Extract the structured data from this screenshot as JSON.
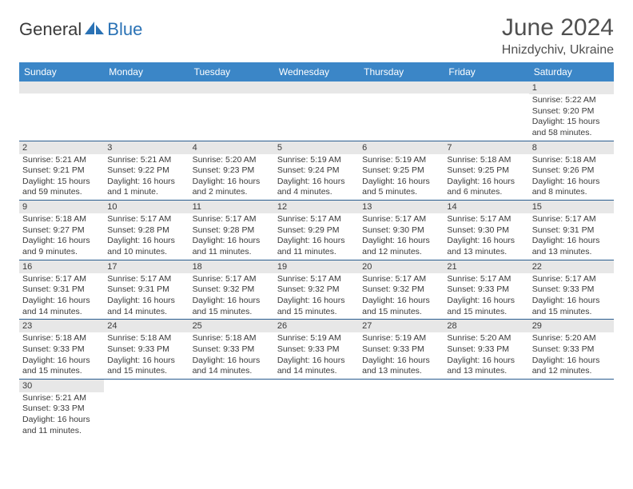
{
  "logo": {
    "part1": "General",
    "part2": "Blue"
  },
  "title": "June 2024",
  "location": "Hnizdychiv, Ukraine",
  "colors": {
    "header_bg": "#3b86c7",
    "header_text": "#ffffff",
    "row_divider": "#2a5d8f",
    "daynum_bg": "#e7e7e7",
    "text": "#3a3a3a",
    "logo_blue": "#2a72b5"
  },
  "weekdays": [
    "Sunday",
    "Monday",
    "Tuesday",
    "Wednesday",
    "Thursday",
    "Friday",
    "Saturday"
  ],
  "weeks": [
    [
      null,
      null,
      null,
      null,
      null,
      null,
      {
        "n": "1",
        "sr": "5:22 AM",
        "ss": "9:20 PM",
        "dl": "15 hours and 58 minutes."
      }
    ],
    [
      {
        "n": "2",
        "sr": "5:21 AM",
        "ss": "9:21 PM",
        "dl": "15 hours and 59 minutes."
      },
      {
        "n": "3",
        "sr": "5:21 AM",
        "ss": "9:22 PM",
        "dl": "16 hours and 1 minute."
      },
      {
        "n": "4",
        "sr": "5:20 AM",
        "ss": "9:23 PM",
        "dl": "16 hours and 2 minutes."
      },
      {
        "n": "5",
        "sr": "5:19 AM",
        "ss": "9:24 PM",
        "dl": "16 hours and 4 minutes."
      },
      {
        "n": "6",
        "sr": "5:19 AM",
        "ss": "9:25 PM",
        "dl": "16 hours and 5 minutes."
      },
      {
        "n": "7",
        "sr": "5:18 AM",
        "ss": "9:25 PM",
        "dl": "16 hours and 6 minutes."
      },
      {
        "n": "8",
        "sr": "5:18 AM",
        "ss": "9:26 PM",
        "dl": "16 hours and 8 minutes."
      }
    ],
    [
      {
        "n": "9",
        "sr": "5:18 AM",
        "ss": "9:27 PM",
        "dl": "16 hours and 9 minutes."
      },
      {
        "n": "10",
        "sr": "5:17 AM",
        "ss": "9:28 PM",
        "dl": "16 hours and 10 minutes."
      },
      {
        "n": "11",
        "sr": "5:17 AM",
        "ss": "9:28 PM",
        "dl": "16 hours and 11 minutes."
      },
      {
        "n": "12",
        "sr": "5:17 AM",
        "ss": "9:29 PM",
        "dl": "16 hours and 11 minutes."
      },
      {
        "n": "13",
        "sr": "5:17 AM",
        "ss": "9:30 PM",
        "dl": "16 hours and 12 minutes."
      },
      {
        "n": "14",
        "sr": "5:17 AM",
        "ss": "9:30 PM",
        "dl": "16 hours and 13 minutes."
      },
      {
        "n": "15",
        "sr": "5:17 AM",
        "ss": "9:31 PM",
        "dl": "16 hours and 13 minutes."
      }
    ],
    [
      {
        "n": "16",
        "sr": "5:17 AM",
        "ss": "9:31 PM",
        "dl": "16 hours and 14 minutes."
      },
      {
        "n": "17",
        "sr": "5:17 AM",
        "ss": "9:31 PM",
        "dl": "16 hours and 14 minutes."
      },
      {
        "n": "18",
        "sr": "5:17 AM",
        "ss": "9:32 PM",
        "dl": "16 hours and 15 minutes."
      },
      {
        "n": "19",
        "sr": "5:17 AM",
        "ss": "9:32 PM",
        "dl": "16 hours and 15 minutes."
      },
      {
        "n": "20",
        "sr": "5:17 AM",
        "ss": "9:32 PM",
        "dl": "16 hours and 15 minutes."
      },
      {
        "n": "21",
        "sr": "5:17 AM",
        "ss": "9:33 PM",
        "dl": "16 hours and 15 minutes."
      },
      {
        "n": "22",
        "sr": "5:17 AM",
        "ss": "9:33 PM",
        "dl": "16 hours and 15 minutes."
      }
    ],
    [
      {
        "n": "23",
        "sr": "5:18 AM",
        "ss": "9:33 PM",
        "dl": "16 hours and 15 minutes."
      },
      {
        "n": "24",
        "sr": "5:18 AM",
        "ss": "9:33 PM",
        "dl": "16 hours and 15 minutes."
      },
      {
        "n": "25",
        "sr": "5:18 AM",
        "ss": "9:33 PM",
        "dl": "16 hours and 14 minutes."
      },
      {
        "n": "26",
        "sr": "5:19 AM",
        "ss": "9:33 PM",
        "dl": "16 hours and 14 minutes."
      },
      {
        "n": "27",
        "sr": "5:19 AM",
        "ss": "9:33 PM",
        "dl": "16 hours and 13 minutes."
      },
      {
        "n": "28",
        "sr": "5:20 AM",
        "ss": "9:33 PM",
        "dl": "16 hours and 13 minutes."
      },
      {
        "n": "29",
        "sr": "5:20 AM",
        "ss": "9:33 PM",
        "dl": "16 hours and 12 minutes."
      }
    ],
    [
      {
        "n": "30",
        "sr": "5:21 AM",
        "ss": "9:33 PM",
        "dl": "16 hours and 11 minutes."
      },
      null,
      null,
      null,
      null,
      null,
      null
    ]
  ],
  "labels": {
    "sunrise": "Sunrise:",
    "sunset": "Sunset:",
    "daylight": "Daylight:"
  }
}
